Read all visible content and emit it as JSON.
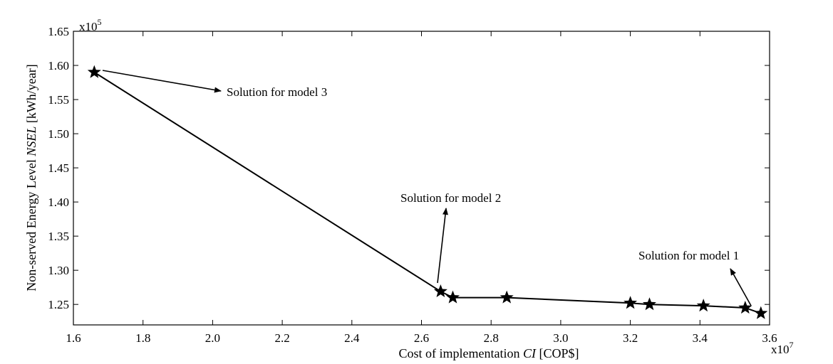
{
  "chart_data": {
    "type": "line",
    "xlabel": {
      "prefix": "Cost of implementation ",
      "italic": "CI",
      "suffix": " [COP$]"
    },
    "ylabel": {
      "prefix": "Non-served Energy Level ",
      "italic": "NSEL",
      "suffix": " [kWh/year]"
    },
    "x_multiplier": {
      "base": "x10",
      "exp": "7"
    },
    "y_multiplier": {
      "base": "x10",
      "exp": "5"
    },
    "xlim": [
      1.6,
      3.6
    ],
    "ylim": [
      1.22,
      1.65
    ],
    "xticks": [
      "1.6",
      "1.8",
      "2.0",
      "2.2",
      "2.4",
      "2.6",
      "2.8",
      "3.0",
      "3.2",
      "3.4",
      "3.6"
    ],
    "yticks": [
      "1.25",
      "1.30",
      "1.35",
      "1.40",
      "1.45",
      "1.50",
      "1.55",
      "1.60",
      "1.65"
    ],
    "grid": false,
    "series": [
      {
        "marker": "star",
        "color": "#000000",
        "x": [
          1.66,
          2.655,
          2.69,
          2.845,
          3.2,
          3.255,
          3.41,
          3.53,
          3.575
        ],
        "y": [
          1.59,
          1.269,
          1.26,
          1.26,
          1.252,
          1.25,
          1.248,
          1.245,
          1.237
        ]
      }
    ],
    "annotations": [
      {
        "text": "Solution for model 3",
        "target": [
          1.66,
          1.59
        ]
      },
      {
        "text": "Solution for model 2",
        "target": [
          2.655,
          1.269
        ]
      },
      {
        "text": "Solution for model 1",
        "target": [
          3.575,
          1.237
        ]
      }
    ]
  }
}
